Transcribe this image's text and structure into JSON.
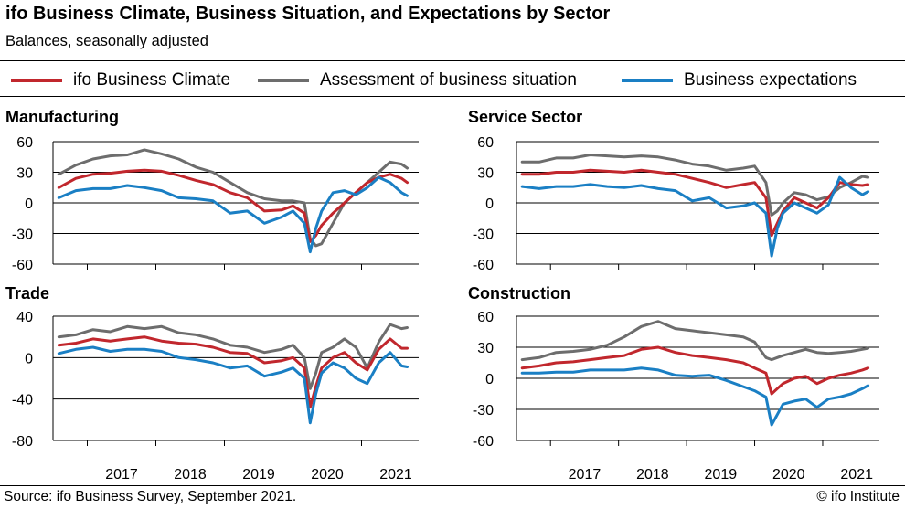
{
  "title": "ifo Business Climate, Business Situation, and Expectations by Sector",
  "subtitle": "Balances, seasonally adjusted",
  "legend": [
    {
      "label": "ifo Business Climate",
      "color": "#c1272d"
    },
    {
      "label": "Assessment of business situation",
      "color": "#6d6d6d"
    },
    {
      "label": "Business expectations",
      "color": "#1a7fc4"
    }
  ],
  "source": "Source: ifo Business Survey, September 2021.",
  "credit": "© ifo Institute",
  "chart_data": [
    {
      "type": "line",
      "title": "Manufacturing",
      "ylim": [
        -60,
        60
      ],
      "yticks": [
        60,
        30,
        0,
        -30,
        -60
      ],
      "x_tick_labels": [
        "2017",
        "2018",
        "2019",
        "2020",
        "2021"
      ],
      "grid": true,
      "x": [
        "2016-08",
        "2016-11",
        "2017-02",
        "2017-05",
        "2017-08",
        "2017-11",
        "2018-02",
        "2018-05",
        "2018-08",
        "2018-11",
        "2019-02",
        "2019-05",
        "2019-08",
        "2019-11",
        "2020-01",
        "2020-03",
        "2020-04",
        "2020-05",
        "2020-06",
        "2020-08",
        "2020-10",
        "2020-12",
        "2021-02",
        "2021-04",
        "2021-06",
        "2021-08",
        "2021-09"
      ],
      "series": [
        {
          "name": "ifo Business Climate",
          "values": [
            15,
            24,
            28,
            29,
            31,
            32,
            31,
            27,
            22,
            18,
            10,
            5,
            -8,
            -7,
            -3,
            -10,
            -38,
            -32,
            -22,
            -10,
            0,
            10,
            20,
            25,
            28,
            24,
            20
          ]
        },
        {
          "name": "Assessment of business situation",
          "values": [
            28,
            37,
            43,
            46,
            47,
            52,
            48,
            43,
            35,
            30,
            20,
            10,
            4,
            2,
            2,
            0,
            -35,
            -42,
            -40,
            -20,
            0,
            10,
            20,
            30,
            40,
            38,
            34
          ]
        },
        {
          "name": "Business expectations",
          "values": [
            5,
            12,
            14,
            14,
            17,
            15,
            12,
            5,
            4,
            2,
            -10,
            -8,
            -20,
            -14,
            -8,
            -20,
            -48,
            -25,
            -8,
            10,
            12,
            8,
            15,
            25,
            20,
            10,
            7
          ]
        }
      ]
    },
    {
      "type": "line",
      "title": "Service Sector",
      "ylim": [
        -60,
        60
      ],
      "yticks": [
        60,
        30,
        0,
        -30,
        -60
      ],
      "x_tick_labels": [
        "2017",
        "2018",
        "2019",
        "2020",
        "2021"
      ],
      "grid": true,
      "x": [
        "2016-08",
        "2016-11",
        "2017-02",
        "2017-05",
        "2017-08",
        "2017-11",
        "2018-02",
        "2018-05",
        "2018-08",
        "2018-11",
        "2019-02",
        "2019-05",
        "2019-08",
        "2019-11",
        "2020-01",
        "2020-03",
        "2020-04",
        "2020-05",
        "2020-06",
        "2020-08",
        "2020-10",
        "2020-12",
        "2021-02",
        "2021-04",
        "2021-06",
        "2021-08",
        "2021-09"
      ],
      "series": [
        {
          "name": "ifo Business Climate",
          "values": [
            28,
            28,
            30,
            30,
            32,
            31,
            30,
            32,
            30,
            28,
            24,
            20,
            15,
            18,
            20,
            5,
            -32,
            -20,
            -8,
            5,
            0,
            -5,
            5,
            20,
            18,
            17,
            18
          ]
        },
        {
          "name": "Assessment of business situation",
          "values": [
            40,
            40,
            44,
            44,
            47,
            46,
            45,
            46,
            45,
            42,
            38,
            36,
            32,
            34,
            36,
            20,
            -12,
            -8,
            0,
            10,
            8,
            3,
            6,
            15,
            20,
            26,
            25
          ]
        },
        {
          "name": "Business expectations",
          "values": [
            16,
            14,
            16,
            16,
            18,
            16,
            15,
            17,
            14,
            12,
            2,
            5,
            -5,
            -3,
            0,
            -10,
            -52,
            -25,
            -10,
            0,
            -5,
            -10,
            -2,
            25,
            15,
            8,
            11
          ]
        }
      ]
    },
    {
      "type": "line",
      "title": "Trade",
      "ylim": [
        -80,
        40
      ],
      "yticks": [
        40,
        0,
        -40,
        -80
      ],
      "x_tick_labels": [
        "2017",
        "2018",
        "2019",
        "2020",
        "2021"
      ],
      "grid": true,
      "x": [
        "2016-08",
        "2016-11",
        "2017-02",
        "2017-05",
        "2017-08",
        "2017-11",
        "2018-02",
        "2018-05",
        "2018-08",
        "2018-11",
        "2019-02",
        "2019-05",
        "2019-08",
        "2019-11",
        "2020-01",
        "2020-03",
        "2020-04",
        "2020-05",
        "2020-06",
        "2020-08",
        "2020-10",
        "2020-12",
        "2021-02",
        "2021-04",
        "2021-06",
        "2021-08",
        "2021-09"
      ],
      "series": [
        {
          "name": "ifo Business Climate",
          "values": [
            12,
            14,
            18,
            16,
            18,
            20,
            16,
            14,
            13,
            10,
            5,
            4,
            -5,
            -3,
            0,
            -10,
            -48,
            -28,
            -10,
            0,
            5,
            -5,
            -12,
            8,
            18,
            9,
            9
          ]
        },
        {
          "name": "Assessment of business situation",
          "values": [
            20,
            22,
            27,
            25,
            30,
            28,
            30,
            24,
            22,
            18,
            12,
            10,
            5,
            8,
            12,
            0,
            -30,
            -15,
            5,
            10,
            18,
            10,
            -10,
            15,
            32,
            28,
            29
          ]
        },
        {
          "name": "Business expectations",
          "values": [
            4,
            8,
            10,
            6,
            8,
            8,
            6,
            0,
            -2,
            -5,
            -10,
            -8,
            -18,
            -14,
            -10,
            -20,
            -63,
            -35,
            -15,
            -5,
            -10,
            -20,
            -25,
            -5,
            5,
            -8,
            -9
          ]
        }
      ]
    },
    {
      "type": "line",
      "title": "Construction",
      "ylim": [
        -60,
        60
      ],
      "yticks": [
        60,
        30,
        0,
        -30,
        -60
      ],
      "x_tick_labels": [
        "2017",
        "2018",
        "2019",
        "2020",
        "2021"
      ],
      "grid": true,
      "x": [
        "2016-08",
        "2016-11",
        "2017-02",
        "2017-05",
        "2017-08",
        "2017-11",
        "2018-02",
        "2018-05",
        "2018-08",
        "2018-11",
        "2019-02",
        "2019-05",
        "2019-08",
        "2019-11",
        "2020-01",
        "2020-03",
        "2020-04",
        "2020-05",
        "2020-06",
        "2020-08",
        "2020-10",
        "2020-12",
        "2021-02",
        "2021-04",
        "2021-06",
        "2021-08",
        "2021-09"
      ],
      "series": [
        {
          "name": "ifo Business Climate",
          "values": [
            10,
            12,
            15,
            16,
            18,
            20,
            22,
            28,
            30,
            25,
            22,
            20,
            18,
            15,
            10,
            5,
            -15,
            -10,
            -5,
            0,
            2,
            -5,
            0,
            3,
            5,
            8,
            10
          ]
        },
        {
          "name": "Assessment of business situation",
          "values": [
            18,
            20,
            25,
            26,
            28,
            32,
            40,
            50,
            55,
            48,
            46,
            44,
            42,
            40,
            35,
            20,
            18,
            20,
            22,
            25,
            28,
            25,
            24,
            25,
            26,
            28,
            29
          ]
        },
        {
          "name": "Business expectations",
          "values": [
            5,
            5,
            6,
            6,
            8,
            8,
            8,
            10,
            8,
            3,
            2,
            3,
            -2,
            -8,
            -12,
            -18,
            -45,
            -35,
            -25,
            -22,
            -20,
            -28,
            -20,
            -18,
            -15,
            -10,
            -7
          ]
        }
      ]
    }
  ]
}
